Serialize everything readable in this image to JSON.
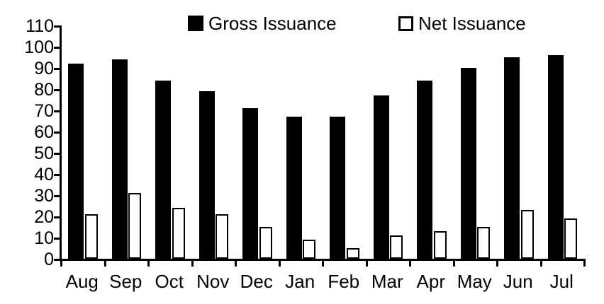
{
  "chart_data": {
    "type": "bar",
    "title": "",
    "xlabel": "",
    "ylabel": "",
    "categories": [
      "Aug",
      "Sep",
      "Oct",
      "Nov",
      "Dec",
      "Jan",
      "Feb",
      "Mar",
      "Apr",
      "May",
      "Jun",
      "Jul"
    ],
    "series": [
      {
        "name": "Gross Issuance",
        "marker": "filled-square",
        "fill": "#000000",
        "stroke": "#000000",
        "values": [
          92,
          94,
          84,
          79,
          71,
          67,
          67,
          77,
          84,
          90,
          95,
          96
        ]
      },
      {
        "name": "Net Issuance",
        "marker": "open-square",
        "fill": "#ffffff",
        "stroke": "#000000",
        "values": [
          21,
          31,
          24,
          21,
          15,
          9,
          5,
          11,
          13,
          15,
          23,
          19
        ]
      }
    ],
    "ylim": [
      0,
      110
    ],
    "yticks": [
      0,
      10,
      20,
      30,
      40,
      50,
      60,
      70,
      80,
      90,
      100,
      110
    ],
    "grid": false,
    "legend_position": "top",
    "colors": {
      "axis": "#000000",
      "text": "#000000",
      "background": "#ffffff"
    }
  }
}
